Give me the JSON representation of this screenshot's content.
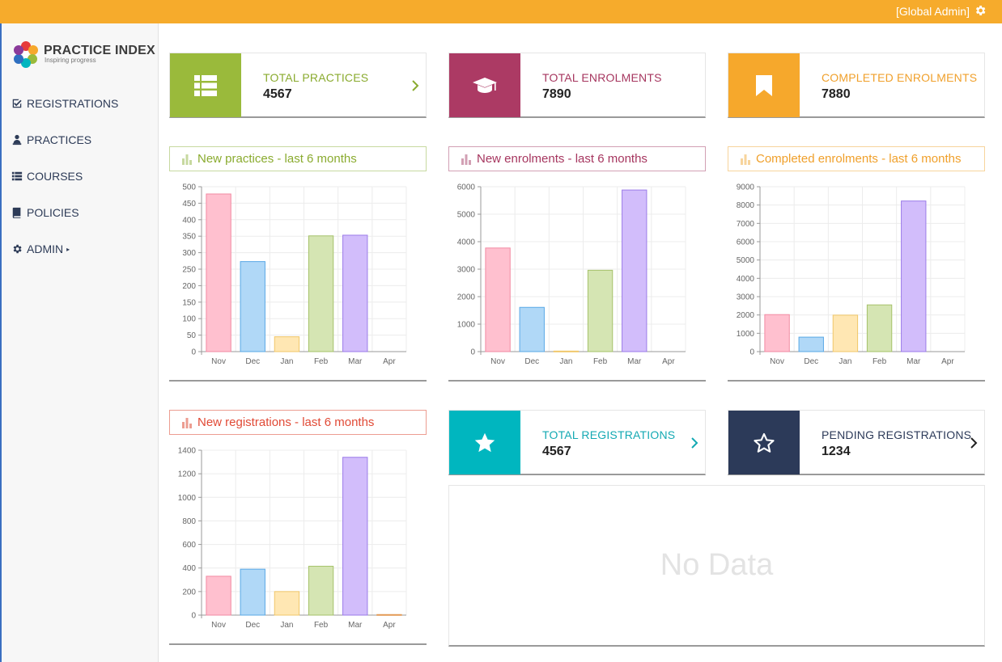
{
  "topbar": {
    "user_label": "[Global Admin]",
    "icon": "gear-icon"
  },
  "brand": {
    "title": "PRACTICE INDEX",
    "tagline": "Inspiring progress"
  },
  "nav": [
    {
      "label": "REGISTRATIONS",
      "icon": "check-square-icon"
    },
    {
      "label": "PRACTICES",
      "icon": "person-icon"
    },
    {
      "label": "COURSES",
      "icon": "list-icon"
    },
    {
      "label": "POLICIES",
      "icon": "book-icon"
    },
    {
      "label": "ADMIN",
      "icon": "gear-icon",
      "caret": "▸"
    }
  ],
  "stats": [
    {
      "label": "TOTAL PRACTICES",
      "value": "4567",
      "color": "#9aba3b",
      "label_color": "#8aab2f",
      "icon": "list-icon",
      "chevron": true
    },
    {
      "label": "TOTAL ENROLMENTS",
      "value": "7890",
      "color": "#ac3a64",
      "label_color": "#a6365f",
      "icon": "graduation-cap-icon",
      "chevron": false
    },
    {
      "label": "COMPLETED ENROLMENTS",
      "value": "7880",
      "color": "#f6a82c",
      "label_color": "#f0a02b",
      "icon": "bookmark-icon",
      "chevron": false
    },
    {
      "label": "TOTAL REGISTRATIONS",
      "value": "4567",
      "color": "#00b6bf",
      "label_color": "#14a9b3",
      "icon": "star-icon",
      "chevron": true
    },
    {
      "label": "PENDING REGISTRATIONS",
      "value": "1234",
      "color": "#2c3a59",
      "label_color": "#2c3a59",
      "icon": "star-outline-icon",
      "chevron": true
    }
  ],
  "colors": {
    "nov": "#ffc0cf",
    "dec": "#b0d8f7",
    "jan": "#ffe7b3",
    "feb": "#d5e5b3",
    "mar": "#d2bdfb",
    "apr": "#f2c28f"
  },
  "chart_data": [
    {
      "type": "bar",
      "title": "New practices - last 6 months",
      "categories": [
        "Nov",
        "Dec",
        "Jan",
        "Feb",
        "Mar",
        "Apr"
      ],
      "values": [
        478,
        273,
        45,
        351,
        353,
        0
      ],
      "ylim": [
        0,
        500
      ],
      "yticks": [
        0,
        50,
        100,
        150,
        200,
        250,
        300,
        350,
        400,
        450,
        500
      ],
      "head_color": "#8aab2f",
      "head_border": "#c7d9a0"
    },
    {
      "type": "bar",
      "title": "New enrolments - last 6 months",
      "categories": [
        "Nov",
        "Dec",
        "Jan",
        "Feb",
        "Mar",
        "Apr"
      ],
      "values": [
        3770,
        1610,
        20,
        2960,
        5880,
        0
      ],
      "ylim": [
        0,
        6000
      ],
      "yticks": [
        0,
        1000,
        2000,
        3000,
        4000,
        5000,
        6000
      ],
      "head_color": "#a6365f",
      "head_border": "#d2a0b4"
    },
    {
      "type": "bar",
      "title": "Completed enrolments - last 6 months",
      "categories": [
        "Nov",
        "Dec",
        "Jan",
        "Feb",
        "Mar",
        "Apr"
      ],
      "values": [
        2020,
        790,
        1990,
        2550,
        8220,
        0
      ],
      "ylim": [
        0,
        9000
      ],
      "yticks": [
        0,
        1000,
        2000,
        3000,
        4000,
        5000,
        6000,
        7000,
        8000,
        9000
      ],
      "head_color": "#f0a02b",
      "head_border": "#f7d49c"
    },
    {
      "type": "bar",
      "title": "New registrations - last 6 months",
      "categories": [
        "Nov",
        "Dec",
        "Jan",
        "Feb",
        "Mar",
        "Apr"
      ],
      "values": [
        330,
        390,
        200,
        415,
        1340,
        5
      ],
      "ylim": [
        0,
        1400
      ],
      "yticks": [
        0,
        200,
        400,
        600,
        800,
        1000,
        1200,
        1400
      ],
      "head_color": "#e14a36",
      "head_border": "#ec9d91"
    }
  ],
  "empty_state": {
    "text": "No Data"
  }
}
